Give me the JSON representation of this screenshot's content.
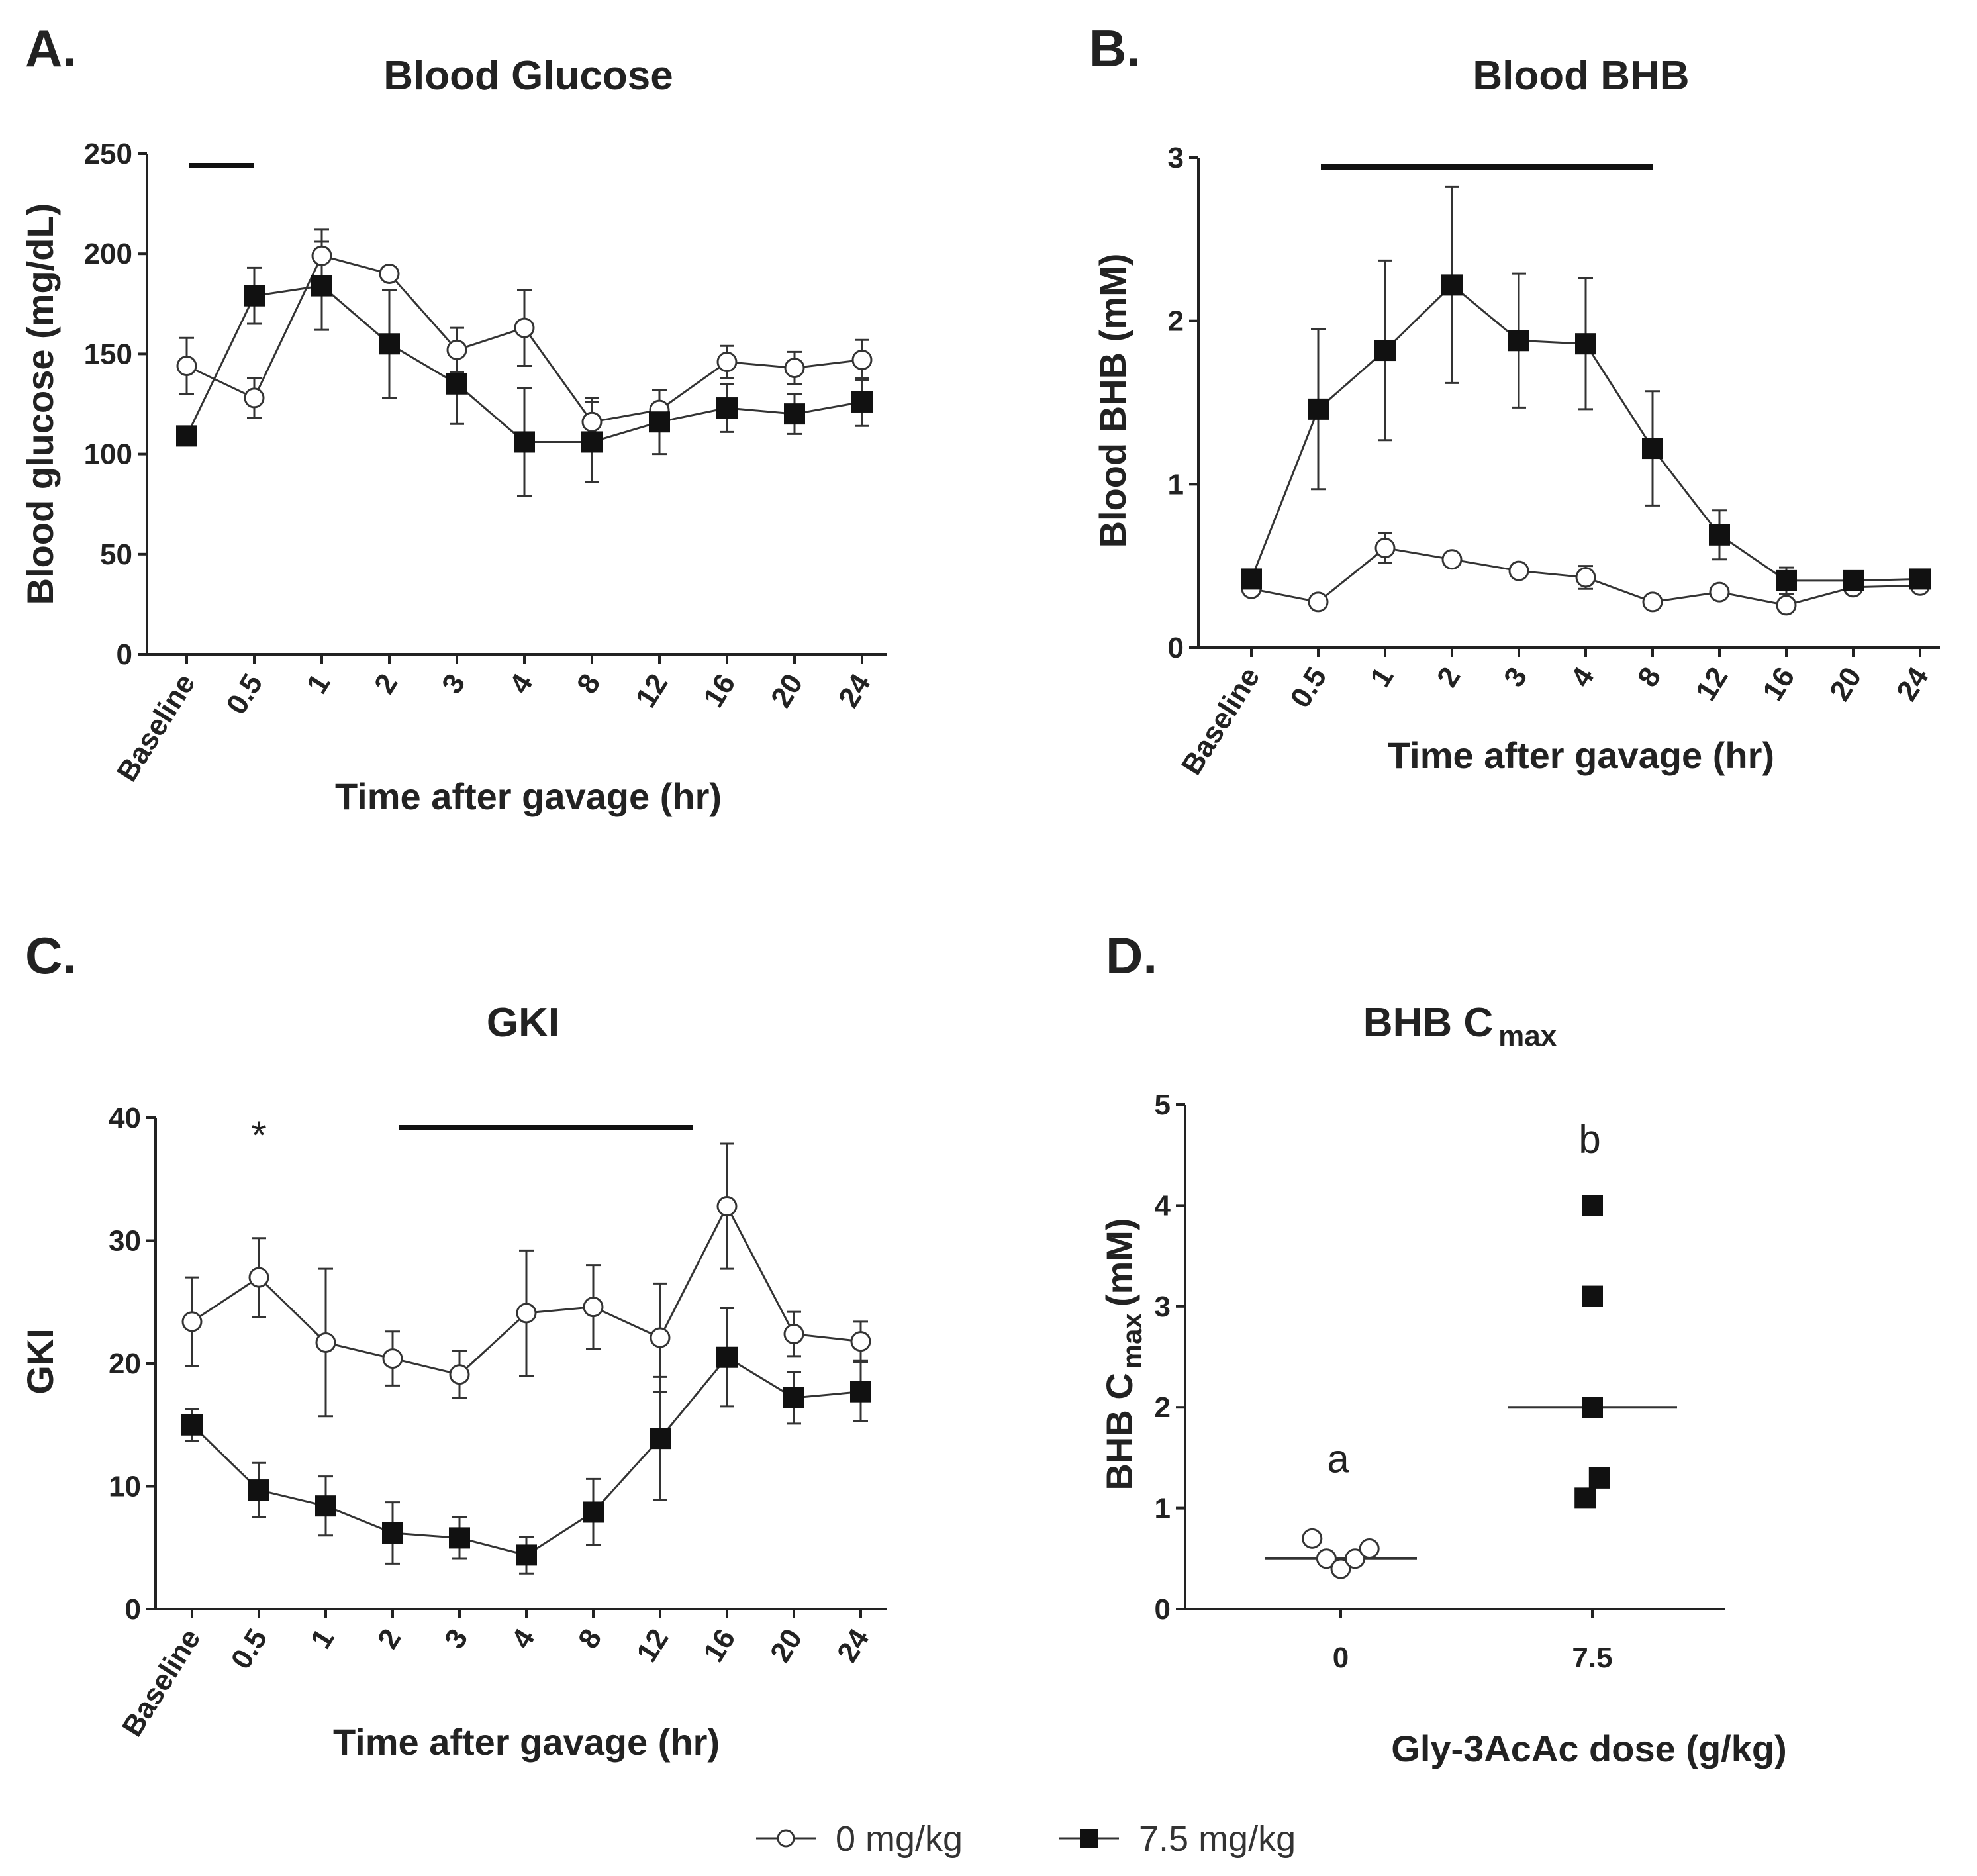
{
  "chart_data": [
    {
      "panel": "A.",
      "type": "line",
      "title": "Blood Glucose",
      "xlabel": "Time after gavage (hr)",
      "ylabel": "Blood glucose (mg/dL)",
      "ylim": [
        0,
        250
      ],
      "yticks": [
        0,
        50,
        100,
        150,
        200,
        250
      ],
      "categories": [
        "Baseline",
        "0.5",
        "1",
        "2",
        "3",
        "4",
        "8",
        "12",
        "16",
        "20",
        "24"
      ],
      "series": [
        {
          "name": "0 mg/kg",
          "marker": "open-circle",
          "values": [
            144,
            128,
            199,
            190,
            152,
            163,
            116,
            122,
            146,
            143,
            147
          ],
          "errors": [
            14,
            10,
            13,
            3,
            11,
            19,
            12,
            10,
            8,
            8,
            10
          ]
        },
        {
          "name": "7.5 mg/kg",
          "marker": "filled-square",
          "values": [
            109,
            179,
            184,
            155,
            135,
            106,
            106,
            116,
            123,
            120,
            126
          ],
          "errors": [
            3,
            14,
            22,
            27,
            20,
            27,
            20,
            16,
            12,
            10,
            12
          ]
        }
      ],
      "significance_bar": {
        "from": "Baseline",
        "to": "0.5"
      }
    },
    {
      "panel": "B.",
      "type": "line",
      "title": "Blood BHB",
      "xlabel": "Time after gavage (hr)",
      "ylabel": "Blood BHB (mM)",
      "ylim": [
        0,
        3
      ],
      "yticks": [
        0,
        1,
        2,
        3
      ],
      "categories": [
        "Baseline",
        "0.5",
        "1",
        "2",
        "3",
        "4",
        "8",
        "12",
        "16",
        "20",
        "24"
      ],
      "series": [
        {
          "name": "0 mg/kg",
          "marker": "open-circle",
          "values": [
            0.36,
            0.28,
            0.61,
            0.54,
            0.47,
            0.43,
            0.28,
            0.34,
            0.26,
            0.37,
            0.38
          ],
          "errors": [
            0.03,
            0.03,
            0.09,
            0.03,
            0.03,
            0.07,
            0.03,
            0.04,
            0.03,
            0.03,
            0.03
          ]
        },
        {
          "name": "7.5 mg/kg",
          "marker": "filled-square",
          "values": [
            0.42,
            1.46,
            1.82,
            2.22,
            1.88,
            1.86,
            1.22,
            0.69,
            0.41,
            0.41,
            0.42
          ],
          "errors": [
            0.05,
            0.49,
            0.55,
            0.6,
            0.41,
            0.4,
            0.35,
            0.15,
            0.08,
            0.04,
            0.04
          ]
        }
      ],
      "significance_bar": {
        "from": "0.5",
        "to": "8"
      }
    },
    {
      "panel": "C.",
      "type": "line",
      "title": "GKI",
      "xlabel": "Time after gavage (hr)",
      "ylabel": "GKI",
      "ylim": [
        0,
        40
      ],
      "yticks": [
        0,
        10,
        20,
        30,
        40
      ],
      "categories": [
        "Baseline",
        "0.5",
        "1",
        "2",
        "3",
        "4",
        "8",
        "12",
        "16",
        "20",
        "24"
      ],
      "series": [
        {
          "name": "0 mg/kg",
          "marker": "open-circle",
          "values": [
            23.4,
            27,
            21.7,
            20.4,
            19.1,
            24.1,
            24.6,
            22.1,
            32.8,
            22.4,
            21.8
          ],
          "errors": [
            3.6,
            3.2,
            6,
            2.2,
            1.9,
            5.1,
            3.4,
            4.4,
            5.1,
            1.8,
            1.6
          ]
        },
        {
          "name": "7.5 mg/kg",
          "marker": "filled-square",
          "values": [
            15,
            9.7,
            8.4,
            6.2,
            5.8,
            4.4,
            7.9,
            13.9,
            20.5,
            17.2,
            17.7
          ],
          "errors": [
            1.3,
            2.2,
            2.4,
            2.5,
            1.7,
            1.5,
            2.7,
            5,
            4,
            2.1,
            2.4
          ]
        }
      ],
      "significance_star": {
        "at": "0.5",
        "text": "*"
      },
      "significance_bar": {
        "from": "2",
        "to": "12"
      }
    },
    {
      "panel": "D.",
      "type": "scatter",
      "title": "BHB C",
      "title_subscript": "max",
      "xlabel": "Gly-3AcAc dose (g/kg)",
      "ylabel": "BHB C",
      "ylabel_subscript": "max",
      "ylabel_unit": "(mM)",
      "ylim": [
        0,
        5
      ],
      "yticks": [
        0,
        1,
        2,
        3,
        4,
        5
      ],
      "categories": [
        "0",
        "7.5"
      ],
      "series": [
        {
          "name": "0 mg/kg",
          "marker": "open-circle",
          "category": "0",
          "points": [
            {
              "value": 0.7,
              "offset": -0.24
            },
            {
              "value": 0.5,
              "offset": -0.12
            },
            {
              "value": 0.4,
              "offset": 0
            },
            {
              "value": 0.5,
              "offset": 0.12
            },
            {
              "value": 0.6,
              "offset": 0.24
            }
          ],
          "median": 0.5,
          "letter": "a"
        },
        {
          "name": "7.5 mg/kg",
          "marker": "filled-square",
          "category": "7.5",
          "points": [
            {
              "value": 4,
              "offset": 0
            },
            {
              "value": 3.1,
              "offset": 0
            },
            {
              "value": 2,
              "offset": 0
            },
            {
              "value": 1.3,
              "offset": 0.06
            },
            {
              "value": 1.1,
              "offset": -0.06
            }
          ],
          "median": 2,
          "letter": "b"
        }
      ]
    }
  ],
  "legend": [
    {
      "label": "0 mg/kg",
      "marker": "open-circle"
    },
    {
      "label": "7.5 mg/kg",
      "marker": "filled-square"
    }
  ]
}
